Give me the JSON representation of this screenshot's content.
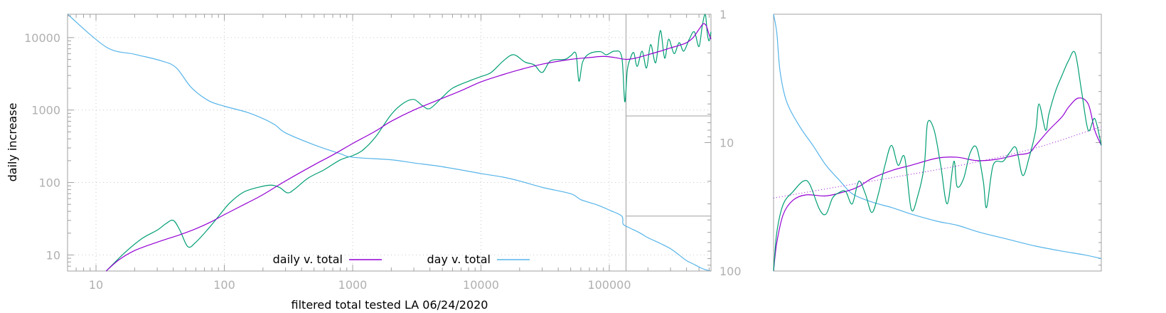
{
  "chart_data": [
    {
      "type": "line",
      "xlabel": "filtered total tested LA 06/24/2020",
      "ylabel": "daily increase",
      "xscale": "log",
      "yscale": "log",
      "xlim": [
        6,
        620000
      ],
      "ylim": [
        6,
        21000
      ],
      "y2lim": [
        1,
        100
      ],
      "y2scale": "log",
      "y2reversed": true,
      "x_ticks": [
        "10",
        "100",
        "1000",
        "10000",
        "100000"
      ],
      "y_ticks": [
        "10",
        "100",
        "1000",
        "10000"
      ],
      "y2_ticks": [
        "1",
        "10",
        "100"
      ],
      "grid": true,
      "legend_position": "bottom-center",
      "colors": {
        "purple": "#9400d3",
        "green": "#009e73",
        "cyan": "#56b4e9",
        "frame": "#a0a0a0"
      },
      "series": [
        {
          "name": "daily v. total",
          "color": "#9400d3",
          "axis": "y",
          "points": [
            [
              12,
              5.5
            ],
            [
              15,
              8.5
            ],
            [
              20,
              11.5
            ],
            [
              30,
              15
            ],
            [
              45,
              19
            ],
            [
              60,
              23
            ],
            [
              80,
              29
            ],
            [
              100,
              36
            ],
            [
              150,
              52
            ],
            [
              200,
              68
            ],
            [
              300,
              105
            ],
            [
              500,
              175
            ],
            [
              700,
              240
            ],
            [
              1000,
              345
            ],
            [
              1500,
              510
            ],
            [
              2000,
              700
            ],
            [
              3000,
              1000
            ],
            [
              5000,
              1450
            ],
            [
              7000,
              1850
            ],
            [
              10000,
              2450
            ],
            [
              15000,
              3100
            ],
            [
              20000,
              3600
            ],
            [
              30000,
              4300
            ],
            [
              50000,
              5000
            ],
            [
              70000,
              5300
            ],
            [
              90000,
              5500
            ],
            [
              110000,
              5300
            ],
            [
              135000,
              5000
            ],
            [
              160000,
              5200
            ],
            [
              200000,
              5800
            ],
            [
              250000,
              6500
            ],
            [
              300000,
              7200
            ],
            [
              350000,
              7800
            ],
            [
              400000,
              8500
            ],
            [
              450000,
              10000
            ],
            [
              500000,
              13000
            ],
            [
              540000,
              15500
            ],
            [
              570000,
              14500
            ],
            [
              600000,
              11000
            ],
            [
              620000,
              9500
            ]
          ]
        },
        {
          "name": "",
          "color": "#009e73",
          "axis": "y",
          "points": [
            [
              12,
              5.5
            ],
            [
              17,
              11
            ],
            [
              23,
              17
            ],
            [
              30,
              22
            ],
            [
              35,
              27
            ],
            [
              40,
              30
            ],
            [
              45,
              22
            ],
            [
              52,
              13
            ],
            [
              60,
              15
            ],
            [
              75,
              23
            ],
            [
              90,
              34
            ],
            [
              110,
              52
            ],
            [
              140,
              73
            ],
            [
              180,
              85
            ],
            [
              230,
              92
            ],
            [
              270,
              85
            ],
            [
              310,
              72
            ],
            [
              350,
              80
            ],
            [
              450,
              115
            ],
            [
              600,
              150
            ],
            [
              800,
              205
            ],
            [
              1000,
              235
            ],
            [
              1200,
              280
            ],
            [
              1500,
              420
            ],
            [
              2000,
              870
            ],
            [
              2500,
              1250
            ],
            [
              3000,
              1400
            ],
            [
              3500,
              1150
            ],
            [
              4000,
              1050
            ],
            [
              5000,
              1500
            ],
            [
              6000,
              2000
            ],
            [
              8000,
              2500
            ],
            [
              10000,
              2900
            ],
            [
              12000,
              3300
            ],
            [
              15000,
              4800
            ],
            [
              18000,
              5800
            ],
            [
              22000,
              4600
            ],
            [
              26000,
              4200
            ],
            [
              30000,
              3300
            ],
            [
              35000,
              4800
            ],
            [
              45000,
              5000
            ],
            [
              50000,
              5600
            ],
            [
              55000,
              6000
            ],
            [
              58000,
              2500
            ],
            [
              62000,
              4600
            ],
            [
              70000,
              6000
            ],
            [
              85000,
              6400
            ],
            [
              95000,
              5800
            ],
            [
              110000,
              6500
            ],
            [
              125000,
              5400
            ],
            [
              132000,
              1300
            ],
            [
              138000,
              3500
            ],
            [
              145000,
              5000
            ],
            [
              155000,
              6200
            ],
            [
              165000,
              4000
            ],
            [
              180000,
              6500
            ],
            [
              195000,
              3800
            ],
            [
              210000,
              8000
            ],
            [
              230000,
              4500
            ],
            [
              250000,
              12500
            ],
            [
              270000,
              5200
            ],
            [
              290000,
              9500
            ],
            [
              320000,
              6000
            ],
            [
              350000,
              8500
            ],
            [
              380000,
              6500
            ],
            [
              420000,
              9500
            ],
            [
              460000,
              12000
            ],
            [
              500000,
              7500
            ],
            [
              530000,
              14500
            ],
            [
              560000,
              21000
            ],
            [
              580000,
              11500
            ],
            [
              600000,
              9000
            ],
            [
              620000,
              12000
            ]
          ]
        },
        {
          "name": "day v. total",
          "color": "#56b4e9",
          "axis": "y2",
          "points": [
            [
              6,
              1
            ],
            [
              12,
              1.8
            ],
            [
              20,
              2.05
            ],
            [
              32,
              2.3
            ],
            [
              42,
              2.6
            ],
            [
              55,
              3.7
            ],
            [
              75,
              4.7
            ],
            [
              100,
              5.2
            ],
            [
              150,
              5.8
            ],
            [
              200,
              6.5
            ],
            [
              250,
              7.3
            ],
            [
              300,
              8.4
            ],
            [
              500,
              10.4
            ],
            [
              800,
              12.2
            ],
            [
              1000,
              13
            ],
            [
              2000,
              13.6
            ],
            [
              3000,
              14.4
            ],
            [
              5000,
              15.4
            ],
            [
              10000,
              17.4
            ],
            [
              15000,
              18.6
            ],
            [
              20000,
              19.9
            ],
            [
              30000,
              22.3
            ],
            [
              50000,
              25
            ],
            [
              60000,
              27.8
            ],
            [
              80000,
              30.5
            ],
            [
              100000,
              33.5
            ],
            [
              125000,
              37.3
            ],
            [
              128000,
              43
            ],
            [
              140000,
              45.5
            ],
            [
              170000,
              50
            ],
            [
              200000,
              55
            ],
            [
              250000,
              61
            ],
            [
              300000,
              67
            ],
            [
              350000,
              75
            ],
            [
              400000,
              83
            ],
            [
              450000,
              88
            ],
            [
              500000,
              93
            ],
            [
              550000,
              97
            ],
            [
              620000,
              100
            ]
          ]
        }
      ],
      "annotations": [
        {
          "type": "vline",
          "x": 135000
        },
        {
          "type": "hline",
          "y2": 6.2,
          "from_x": 135000
        },
        {
          "type": "hline",
          "y2": 37.3,
          "from_x": 135000
        }
      ]
    },
    {
      "type": "line",
      "ylim": [
        1,
        100
      ],
      "yreversed": true,
      "series": [
        {
          "name": "",
          "color": "#56b4e9",
          "points": [
            [
              0.0,
              1
            ],
            [
              0.01,
              1.4
            ],
            [
              0.02,
              2.8
            ],
            [
              0.04,
              4.8
            ],
            [
              0.08,
              7.5
            ],
            [
              0.12,
              10.5
            ],
            [
              0.16,
              15
            ],
            [
              0.2,
              19.5
            ],
            [
              0.24,
              25
            ],
            [
              0.3,
              29
            ],
            [
              0.36,
              32
            ],
            [
              0.42,
              36
            ],
            [
              0.5,
              41
            ],
            [
              0.56,
              44
            ],
            [
              0.63,
              50
            ],
            [
              0.72,
              57
            ],
            [
              0.8,
              64
            ],
            [
              0.88,
              70
            ],
            [
              0.95,
              75
            ],
            [
              1.0,
              80
            ]
          ]
        },
        {
          "name": "",
          "color": "#9400d3",
          "points": [
            [
              0.0,
              100
            ],
            [
              0.01,
              60
            ],
            [
              0.03,
              36
            ],
            [
              0.06,
              28
            ],
            [
              0.1,
              25.5
            ],
            [
              0.16,
              26
            ],
            [
              0.22,
              24
            ],
            [
              0.26,
              22
            ],
            [
              0.3,
              19
            ],
            [
              0.36,
              16.5
            ],
            [
              0.42,
              15
            ],
            [
              0.5,
              13.2
            ],
            [
              0.56,
              13
            ],
            [
              0.62,
              13.8
            ],
            [
              0.68,
              13.5
            ],
            [
              0.74,
              12.5
            ],
            [
              0.78,
              12
            ],
            [
              0.8,
              10.5
            ],
            [
              0.84,
              8
            ],
            [
              0.88,
              6.3
            ],
            [
              0.9,
              5.3
            ],
            [
              0.93,
              4.5
            ],
            [
              0.96,
              5
            ],
            [
              0.98,
              8
            ],
            [
              1.0,
              10.5
            ]
          ]
        },
        {
          "name": "",
          "color": "#009e73",
          "points": [
            [
              0.0,
              100
            ],
            [
              0.01,
              50
            ],
            [
              0.03,
              30
            ],
            [
              0.06,
              24
            ],
            [
              0.09,
              20
            ],
            [
              0.11,
              21
            ],
            [
              0.14,
              33
            ],
            [
              0.16,
              36
            ],
            [
              0.18,
              27
            ],
            [
              0.2,
              24.5
            ],
            [
              0.22,
              24
            ],
            [
              0.24,
              30
            ],
            [
              0.26,
              20
            ],
            [
              0.28,
              25
            ],
            [
              0.3,
              35
            ],
            [
              0.32,
              25
            ],
            [
              0.34,
              15
            ],
            [
              0.36,
              10.5
            ],
            [
              0.38,
              15
            ],
            [
              0.4,
              13
            ],
            [
              0.42,
              33
            ],
            [
              0.44,
              26
            ],
            [
              0.46,
              15
            ],
            [
              0.47,
              7
            ],
            [
              0.49,
              8
            ],
            [
              0.51,
              15
            ],
            [
              0.53,
              30
            ],
            [
              0.55,
              14
            ],
            [
              0.56,
              22
            ],
            [
              0.58,
              19
            ],
            [
              0.6,
              12
            ],
            [
              0.62,
              11
            ],
            [
              0.64,
              20
            ],
            [
              0.65,
              32
            ],
            [
              0.67,
              15
            ],
            [
              0.7,
              14
            ],
            [
              0.72,
              12
            ],
            [
              0.74,
              11
            ],
            [
              0.76,
              18
            ],
            [
              0.78,
              13
            ],
            [
              0.8,
              8
            ],
            [
              0.81,
              5
            ],
            [
              0.83,
              8
            ],
            [
              0.84,
              6
            ],
            [
              0.86,
              4
            ],
            [
              0.88,
              3
            ],
            [
              0.9,
              2.3
            ],
            [
              0.92,
              2.0
            ],
            [
              0.94,
              4
            ],
            [
              0.96,
              8
            ],
            [
              0.98,
              6.5
            ],
            [
              1.0,
              10.5
            ]
          ]
        },
        {
          "name": "",
          "color": "#9400d3",
          "style": "dotted",
          "points": [
            [
              0.0,
              27
            ],
            [
              0.2,
              22
            ],
            [
              0.4,
              18
            ],
            [
              0.6,
              14.5
            ],
            [
              0.8,
              11
            ],
            [
              1.0,
              7.5
            ]
          ]
        }
      ]
    }
  ]
}
